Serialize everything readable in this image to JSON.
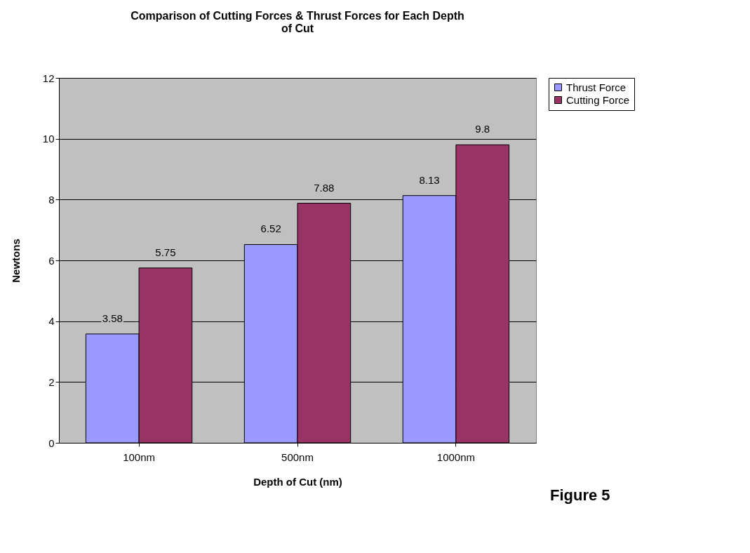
{
  "chart_data": {
    "type": "bar",
    "title": "Comparison of Cutting Forces & Thrust Forces for Each Depth of Cut",
    "xlabel": "Depth of Cut (nm)",
    "ylabel": "Newtons",
    "categories": [
      "100nm",
      "500nm",
      "1000nm"
    ],
    "series": [
      {
        "name": "Thrust Force",
        "color": "#9999ff",
        "values": [
          3.58,
          6.52,
          8.13
        ]
      },
      {
        "name": "Cutting Force",
        "color": "#993366",
        "values": [
          5.75,
          7.88,
          9.8
        ]
      }
    ],
    "ylim": [
      0,
      12
    ],
    "yticks": [
      0,
      2,
      4,
      6,
      8,
      10,
      12
    ],
    "grid": "y",
    "legend": "right",
    "data_labels": true,
    "annotations": [
      "Figure 5"
    ]
  }
}
